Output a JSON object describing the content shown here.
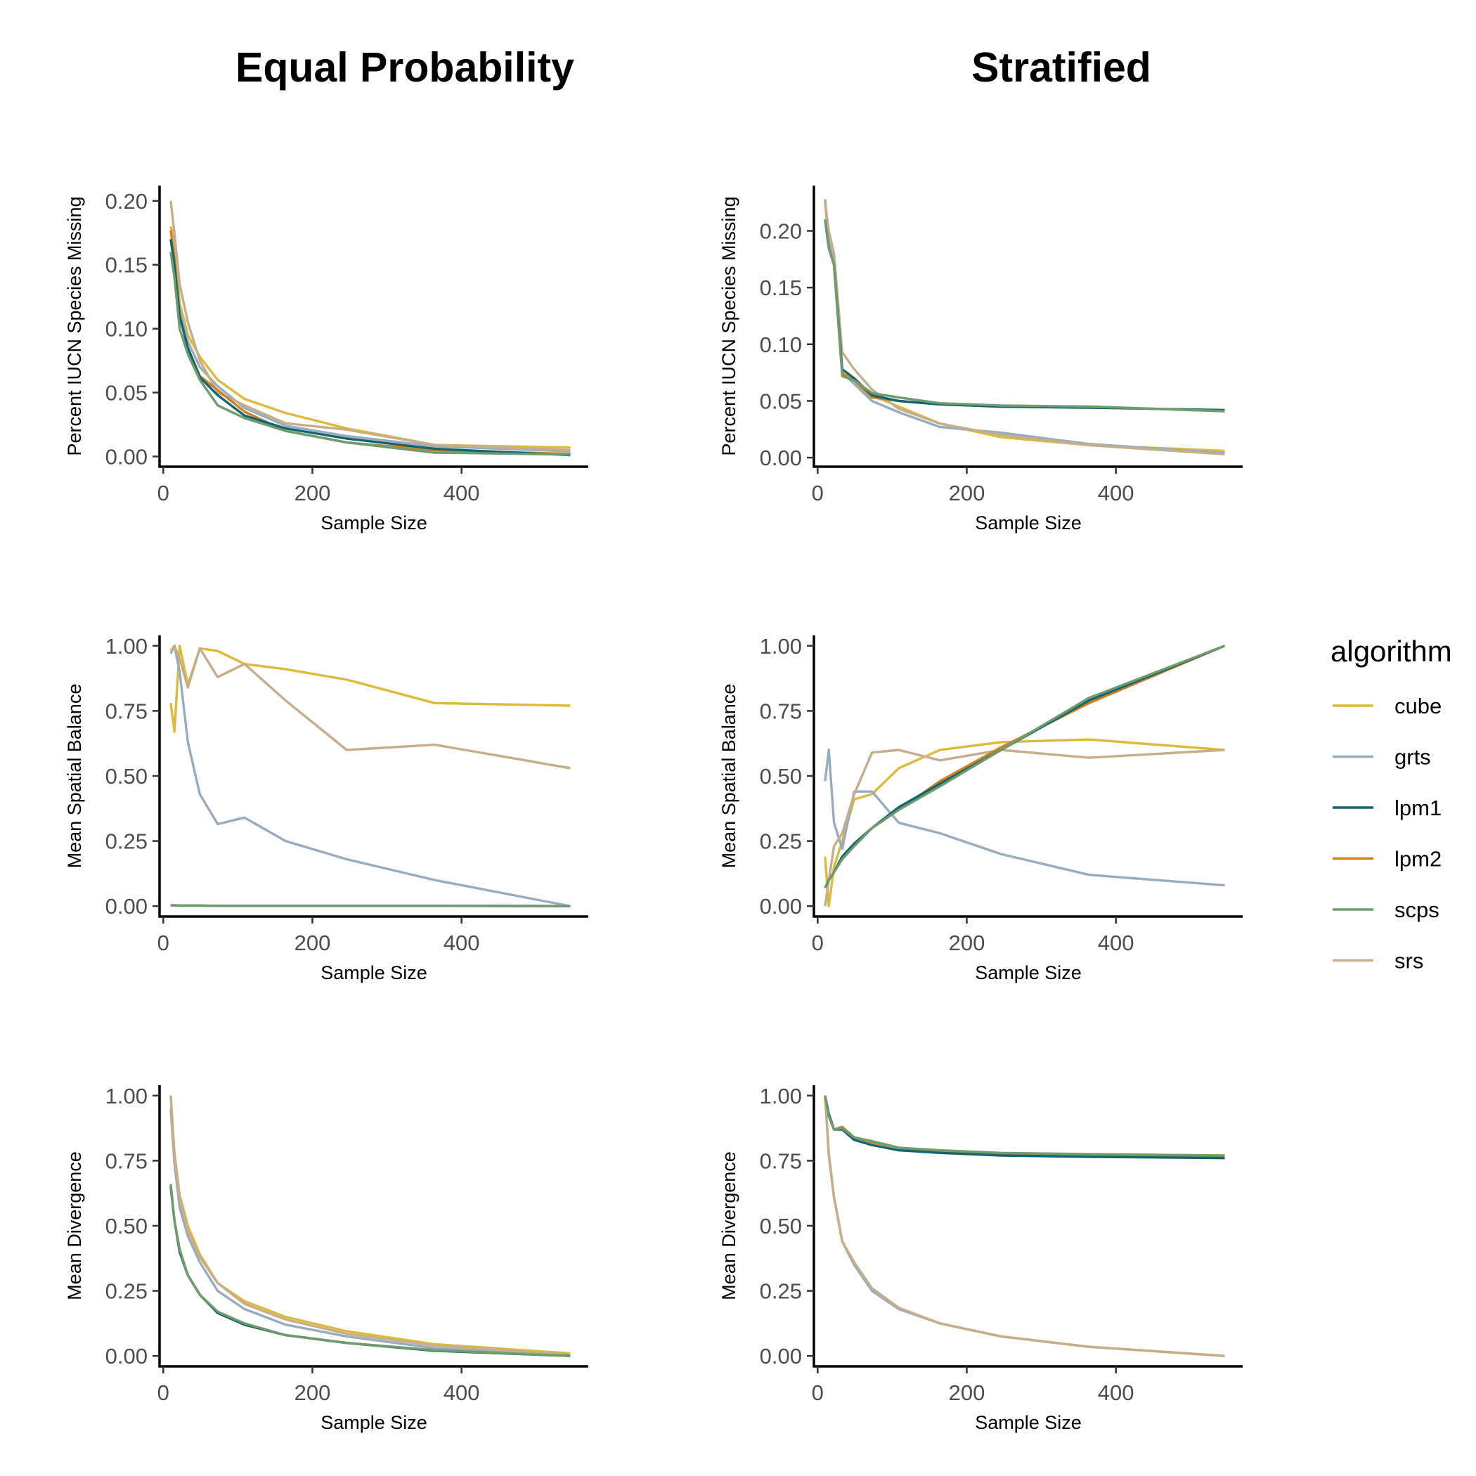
{
  "column_titles": [
    "Equal Probability",
    "Stratified"
  ],
  "legend": {
    "title": "algorithm",
    "items": [
      {
        "name": "cube",
        "color": "#DDBA3C"
      },
      {
        "name": "grts",
        "color": "#98ACC0"
      },
      {
        "name": "lpm1",
        "color": "#0F6571"
      },
      {
        "name": "lpm2",
        "color": "#D0801F"
      },
      {
        "name": "scps",
        "color": "#6E9C6C"
      },
      {
        "name": "srs",
        "color": "#C6AE8A"
      }
    ]
  },
  "chart_data": [
    {
      "type": "line",
      "column_title": "Equal Probability",
      "xlabel": "Sample Size",
      "ylabel": "Percent IUCN Species Missing",
      "xlim": [
        -5,
        570
      ],
      "ylim": [
        -0.008,
        0.212
      ],
      "xticks": [
        0,
        200,
        400
      ],
      "xtick_labels": [
        "0",
        "200",
        "400"
      ],
      "yticks": [
        0,
        0.05,
        0.1,
        0.15,
        0.2
      ],
      "ytick_labels": [
        "0.00",
        "0.05",
        "0.10",
        "0.15",
        "0.20"
      ],
      "grid": false,
      "x": [
        10,
        15,
        22,
        33,
        49,
        73,
        109,
        164,
        246,
        364,
        546
      ],
      "series": [
        {
          "name": "cube",
          "values": [
            0.18,
            0.17,
            0.12,
            0.095,
            0.078,
            0.06,
            0.045,
            0.034,
            0.022,
            0.009,
            0.007
          ]
        },
        {
          "name": "grts",
          "values": [
            0.17,
            0.15,
            0.115,
            0.09,
            0.07,
            0.055,
            0.038,
            0.024,
            0.016,
            0.008,
            0.004
          ]
        },
        {
          "name": "lpm1",
          "values": [
            0.17,
            0.15,
            0.11,
            0.085,
            0.062,
            0.048,
            0.032,
            0.022,
            0.014,
            0.006,
            0.001
          ]
        },
        {
          "name": "lpm2",
          "values": [
            0.177,
            0.155,
            0.11,
            0.085,
            0.063,
            0.052,
            0.035,
            0.02,
            0.011,
            0.005,
            0.002
          ]
        },
        {
          "name": "scps",
          "values": [
            0.16,
            0.14,
            0.1,
            0.08,
            0.06,
            0.04,
            0.03,
            0.02,
            0.011,
            0.003,
            0.0015
          ]
        },
        {
          "name": "srs",
          "values": [
            0.2,
            0.175,
            0.135,
            0.105,
            0.075,
            0.05,
            0.04,
            0.026,
            0.021,
            0.009,
            0.005
          ]
        }
      ]
    },
    {
      "type": "line",
      "column_title": "Stratified",
      "xlabel": "Sample Size",
      "ylabel": "Percent IUCN Species Missing",
      "xlim": [
        -5,
        570
      ],
      "ylim": [
        -0.008,
        0.24
      ],
      "xticks": [
        0,
        200,
        400
      ],
      "xtick_labels": [
        "0",
        "200",
        "400"
      ],
      "yticks": [
        0,
        0.05,
        0.1,
        0.15,
        0.2
      ],
      "ytick_labels": [
        "0.00",
        "0.05",
        "0.10",
        "0.15",
        "0.20"
      ],
      "grid": false,
      "x": [
        10,
        15,
        22,
        33,
        49,
        73,
        109,
        164,
        246,
        364,
        546
      ],
      "series": [
        {
          "name": "cube",
          "values": [
            0.225,
            0.19,
            0.18,
            0.075,
            0.07,
            0.055,
            0.045,
            0.03,
            0.018,
            0.011,
            0.006
          ]
        },
        {
          "name": "grts",
          "values": [
            0.228,
            0.19,
            0.175,
            0.075,
            0.065,
            0.05,
            0.04,
            0.027,
            0.022,
            0.012,
            0.004
          ]
        },
        {
          "name": "lpm1",
          "values": [
            0.21,
            0.185,
            0.17,
            0.078,
            0.07,
            0.055,
            0.05,
            0.047,
            0.045,
            0.044,
            0.042
          ]
        },
        {
          "name": "lpm2",
          "values": [
            0.21,
            0.185,
            0.17,
            0.074,
            0.068,
            0.053,
            0.05,
            0.047,
            0.045,
            0.045,
            0.041
          ]
        },
        {
          "name": "scps",
          "values": [
            0.21,
            0.185,
            0.17,
            0.072,
            0.068,
            0.057,
            0.053,
            0.048,
            0.046,
            0.045,
            0.041
          ]
        },
        {
          "name": "srs",
          "values": [
            0.225,
            0.2,
            0.18,
            0.093,
            0.078,
            0.06,
            0.043,
            0.03,
            0.02,
            0.011,
            0.003
          ]
        }
      ]
    },
    {
      "type": "line",
      "column_title": "Equal Probability",
      "xlabel": "Sample Size",
      "ylabel": "Mean Spatial Balance",
      "xlim": [
        -5,
        570
      ],
      "ylim": [
        -0.04,
        1.04
      ],
      "xticks": [
        0,
        200,
        400
      ],
      "xtick_labels": [
        "0",
        "200",
        "400"
      ],
      "yticks": [
        0,
        0.25,
        0.5,
        0.75,
        1
      ],
      "ytick_labels": [
        "0.00",
        "0.25",
        "0.50",
        "0.75",
        "1.00"
      ],
      "grid": false,
      "x": [
        10,
        15,
        22,
        33,
        49,
        73,
        109,
        164,
        246,
        364,
        546
      ],
      "series": [
        {
          "name": "cube",
          "values": [
            0.78,
            0.67,
            1.0,
            0.85,
            0.99,
            0.98,
            0.93,
            0.91,
            0.87,
            0.78,
            0.77
          ]
        },
        {
          "name": "grts",
          "values": [
            0.97,
            1.0,
            0.9,
            0.63,
            0.43,
            0.315,
            0.34,
            0.25,
            0.18,
            0.1,
            0.0
          ]
        },
        {
          "name": "lpm1",
          "values": [
            0.003,
            0.003,
            0.002,
            0.002,
            0.002,
            0.001,
            0.001,
            0.001,
            0.001,
            0.001,
            0.0
          ]
        },
        {
          "name": "lpm2",
          "values": [
            0.003,
            0.003,
            0.002,
            0.002,
            0.002,
            0.001,
            0.001,
            0.001,
            0.001,
            0.001,
            0.0
          ]
        },
        {
          "name": "scps",
          "values": [
            0.003,
            0.003,
            0.002,
            0.002,
            0.002,
            0.001,
            0.001,
            0.001,
            0.001,
            0.001,
            0.0
          ]
        },
        {
          "name": "srs",
          "values": [
            0.98,
            1.0,
            0.95,
            0.84,
            0.99,
            0.88,
            0.93,
            0.79,
            0.6,
            0.62,
            0.53
          ]
        }
      ]
    },
    {
      "type": "line",
      "column_title": "Stratified",
      "xlabel": "Sample Size",
      "ylabel": "Mean Spatial Balance",
      "xlim": [
        -5,
        570
      ],
      "ylim": [
        -0.04,
        1.04
      ],
      "xticks": [
        0,
        200,
        400
      ],
      "xtick_labels": [
        "0",
        "200",
        "400"
      ],
      "yticks": [
        0,
        0.25,
        0.5,
        0.75,
        1
      ],
      "ytick_labels": [
        "0.00",
        "0.25",
        "0.50",
        "0.75",
        "1.00"
      ],
      "grid": false,
      "x": [
        10,
        15,
        22,
        33,
        49,
        73,
        109,
        164,
        246,
        364,
        546
      ],
      "series": [
        {
          "name": "cube",
          "values": [
            0.19,
            0.0,
            0.15,
            0.25,
            0.41,
            0.43,
            0.53,
            0.6,
            0.63,
            0.64,
            0.6
          ]
        },
        {
          "name": "grts",
          "values": [
            0.48,
            0.6,
            0.32,
            0.22,
            0.44,
            0.44,
            0.32,
            0.28,
            0.2,
            0.12,
            0.08
          ]
        },
        {
          "name": "lpm1",
          "values": [
            0.07,
            0.1,
            0.13,
            0.19,
            0.24,
            0.3,
            0.38,
            0.47,
            0.6,
            0.79,
            1.0
          ]
        },
        {
          "name": "lpm2",
          "values": [
            0.07,
            0.1,
            0.13,
            0.19,
            0.24,
            0.3,
            0.37,
            0.48,
            0.61,
            0.78,
            1.0
          ]
        },
        {
          "name": "scps",
          "values": [
            0.07,
            0.1,
            0.13,
            0.18,
            0.23,
            0.3,
            0.37,
            0.46,
            0.6,
            0.8,
            1.0
          ]
        },
        {
          "name": "srs",
          "values": [
            0.0,
            0.1,
            0.23,
            0.28,
            0.43,
            0.59,
            0.6,
            0.56,
            0.6,
            0.57,
            0.6
          ]
        }
      ]
    },
    {
      "type": "line",
      "column_title": "Equal Probability",
      "xlabel": "Sample Size",
      "ylabel": "Mean Divergence",
      "xlim": [
        -5,
        570
      ],
      "ylim": [
        -0.04,
        1.04
      ],
      "xticks": [
        0,
        200,
        400
      ],
      "xtick_labels": [
        "0",
        "200",
        "400"
      ],
      "yticks": [
        0,
        0.25,
        0.5,
        0.75,
        1
      ],
      "ytick_labels": [
        "0.00",
        "0.25",
        "0.50",
        "0.75",
        "1.00"
      ],
      "grid": false,
      "x": [
        10,
        15,
        22,
        33,
        49,
        73,
        109,
        164,
        246,
        364,
        546
      ],
      "series": [
        {
          "name": "cube",
          "values": [
            1.0,
            0.78,
            0.62,
            0.5,
            0.39,
            0.28,
            0.21,
            0.15,
            0.095,
            0.045,
            0.01
          ]
        },
        {
          "name": "grts",
          "values": [
            0.95,
            0.74,
            0.57,
            0.46,
            0.36,
            0.25,
            0.18,
            0.12,
            0.075,
            0.03,
            0.0
          ]
        },
        {
          "name": "lpm1",
          "values": [
            0.65,
            0.52,
            0.4,
            0.31,
            0.235,
            0.165,
            0.12,
            0.08,
            0.05,
            0.02,
            0.0
          ]
        },
        {
          "name": "lpm2",
          "values": [
            0.65,
            0.52,
            0.4,
            0.31,
            0.235,
            0.165,
            0.12,
            0.08,
            0.05,
            0.02,
            0.0
          ]
        },
        {
          "name": "scps",
          "values": [
            0.66,
            0.52,
            0.41,
            0.31,
            0.235,
            0.17,
            0.125,
            0.08,
            0.05,
            0.022,
            0.0
          ]
        },
        {
          "name": "srs",
          "values": [
            1.0,
            0.77,
            0.61,
            0.48,
            0.38,
            0.28,
            0.2,
            0.14,
            0.085,
            0.04,
            0.005
          ]
        }
      ]
    },
    {
      "type": "line",
      "column_title": "Stratified",
      "xlabel": "Sample Size",
      "ylabel": "Mean Divergence",
      "xlim": [
        -5,
        570
      ],
      "ylim": [
        -0.04,
        1.04
      ],
      "xticks": [
        0,
        200,
        400
      ],
      "xtick_labels": [
        "0",
        "200",
        "400"
      ],
      "yticks": [
        0,
        0.25,
        0.5,
        0.75,
        1
      ],
      "ytick_labels": [
        "0.00",
        "0.25",
        "0.50",
        "0.75",
        "1.00"
      ],
      "grid": false,
      "x": [
        10,
        15,
        22,
        33,
        49,
        73,
        109,
        164,
        246,
        364,
        546
      ],
      "series": [
        {
          "name": "cube",
          "values": [
            1.0,
            0.77,
            0.61,
            0.44,
            0.35,
            0.25,
            0.18,
            0.125,
            0.075,
            0.035,
            0.0
          ]
        },
        {
          "name": "grts",
          "values": [
            1.0,
            0.77,
            0.61,
            0.44,
            0.35,
            0.25,
            0.18,
            0.125,
            0.075,
            0.035,
            0.0
          ]
        },
        {
          "name": "lpm1",
          "values": [
            1.0,
            0.93,
            0.87,
            0.87,
            0.83,
            0.81,
            0.79,
            0.78,
            0.77,
            0.765,
            0.76
          ]
        },
        {
          "name": "lpm2",
          "values": [
            1.0,
            0.92,
            0.87,
            0.88,
            0.84,
            0.82,
            0.8,
            0.785,
            0.775,
            0.77,
            0.765
          ]
        },
        {
          "name": "scps",
          "values": [
            1.0,
            0.92,
            0.87,
            0.875,
            0.84,
            0.825,
            0.8,
            0.79,
            0.78,
            0.775,
            0.77
          ]
        },
        {
          "name": "srs",
          "values": [
            1.0,
            0.78,
            0.61,
            0.44,
            0.36,
            0.26,
            0.185,
            0.125,
            0.075,
            0.035,
            0.0
          ]
        }
      ]
    }
  ]
}
